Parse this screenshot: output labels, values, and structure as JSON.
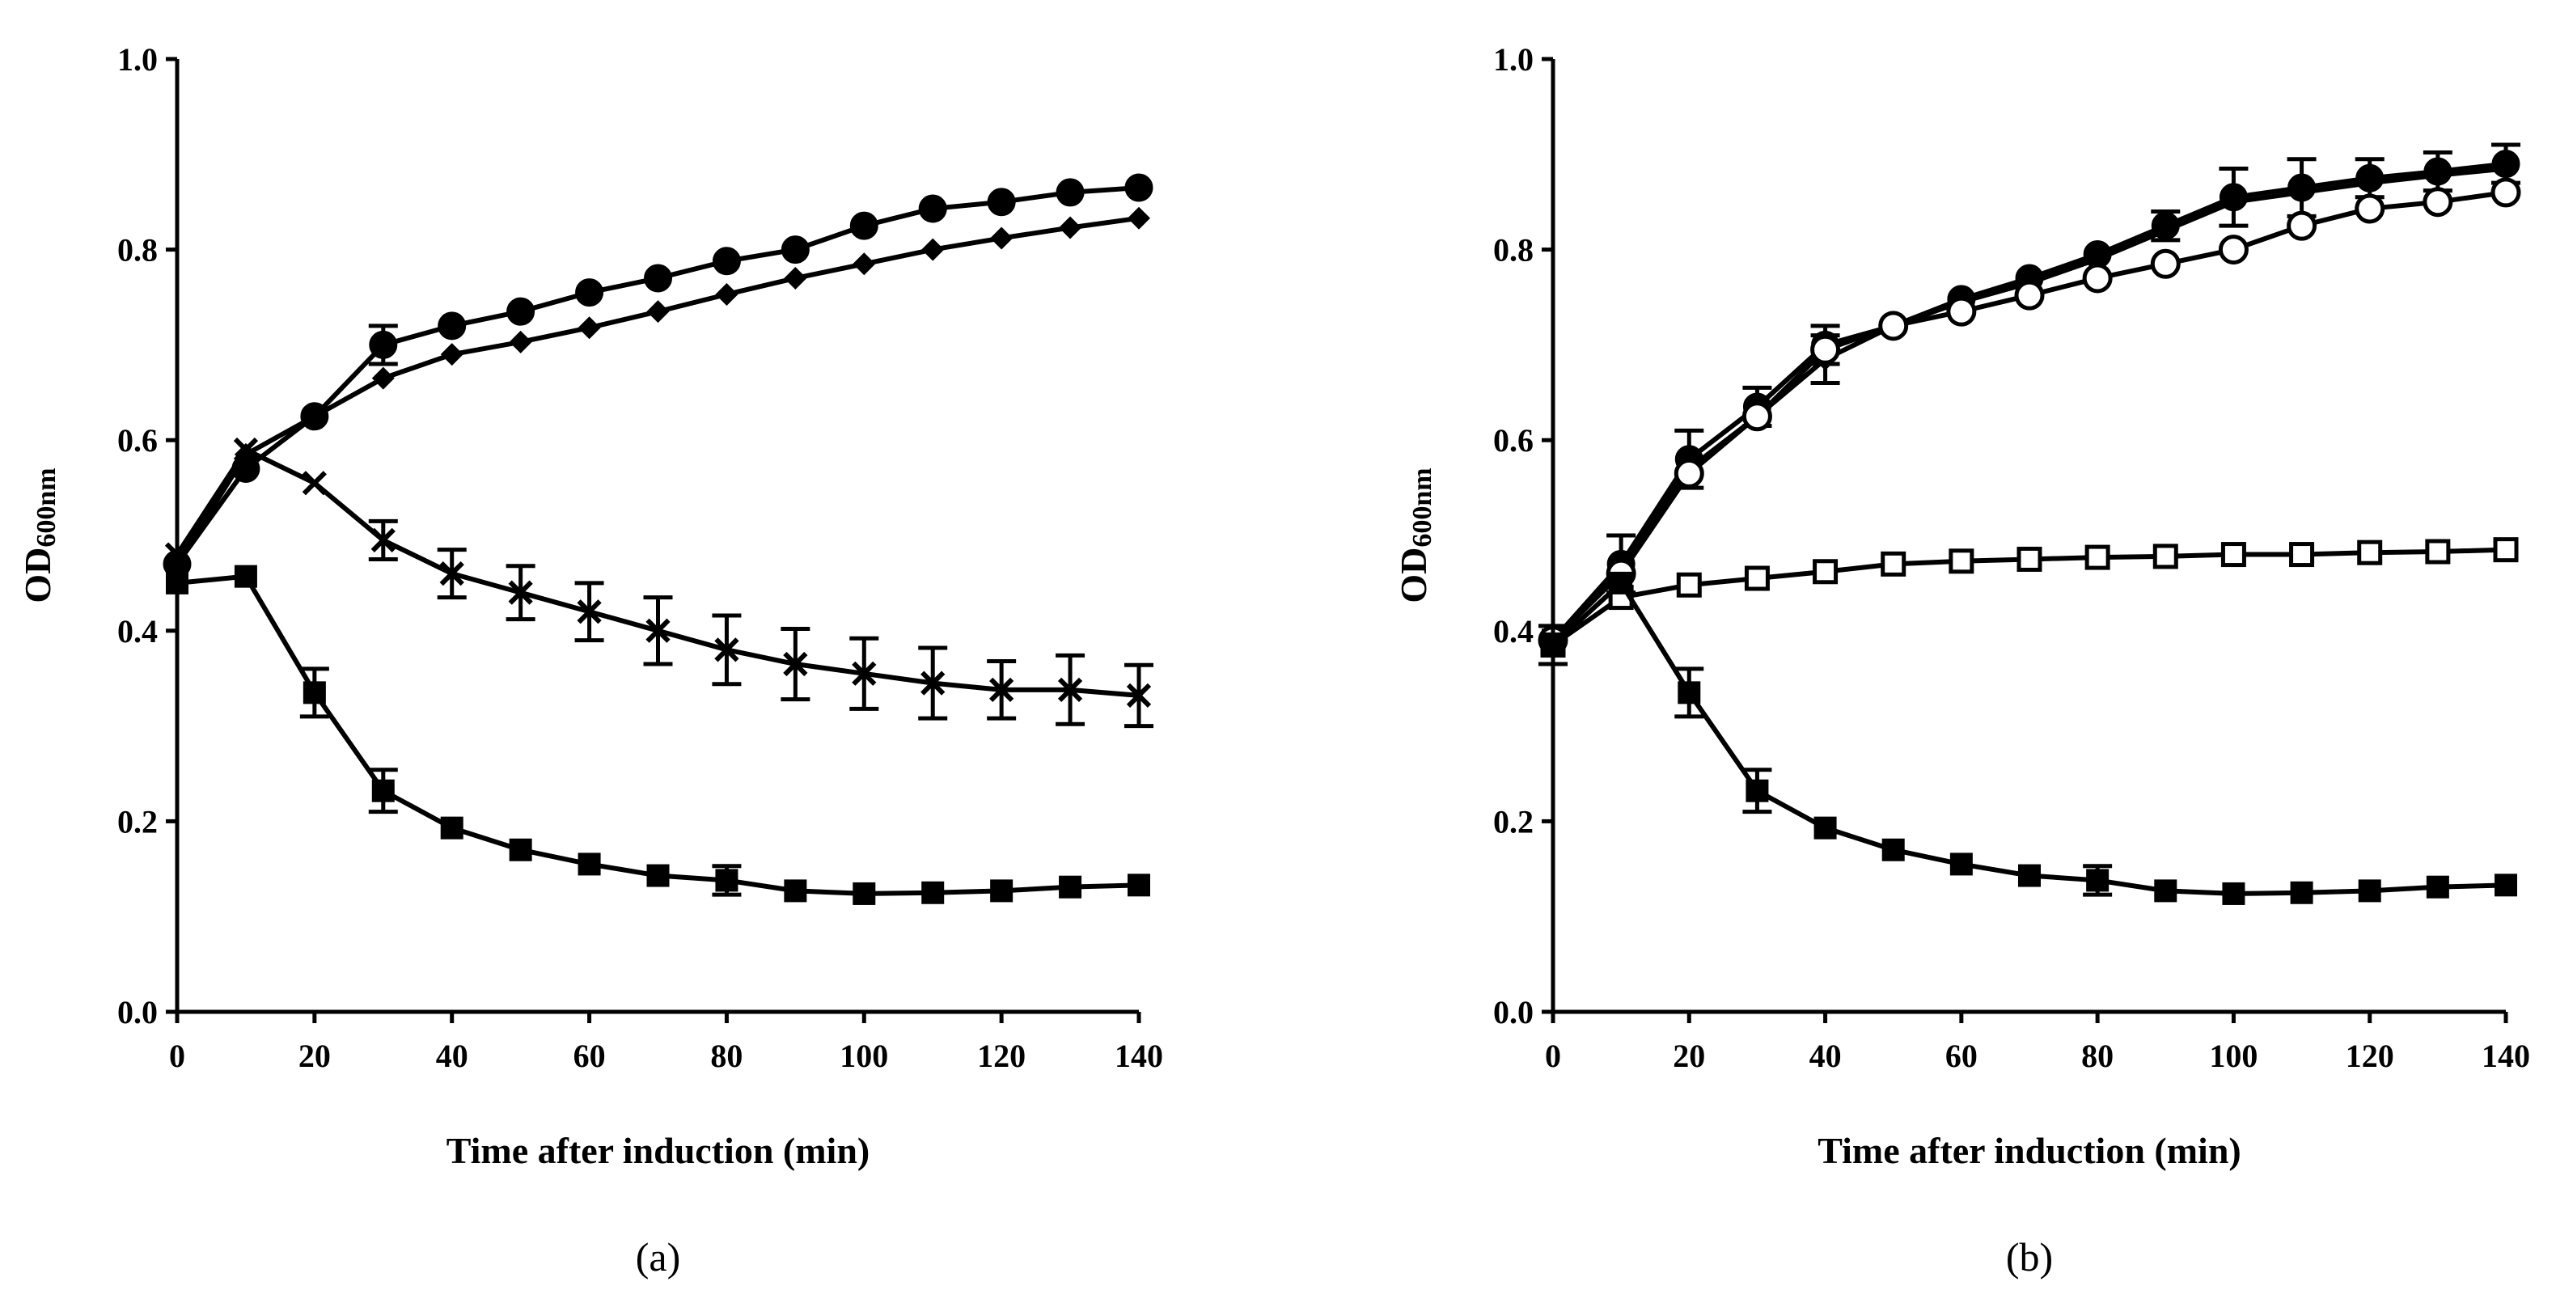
{
  "chart_data": [
    {
      "type": "line",
      "panel_label": "(a)",
      "xlabel": "Time after induction (min)",
      "ylabel_main": "OD",
      "ylabel_sub": "600nm",
      "xlim": [
        0,
        140
      ],
      "ylim": [
        0,
        1.0
      ],
      "xticks": [
        0,
        20,
        40,
        60,
        80,
        100,
        120,
        140
      ],
      "yticks": [
        "0.0",
        "0.2",
        "0.4",
        "0.6",
        "0.8",
        "1.0"
      ],
      "x": [
        0,
        10,
        20,
        30,
        40,
        50,
        60,
        70,
        80,
        90,
        100,
        110,
        120,
        130,
        140
      ],
      "series": [
        {
          "name": "filled-circle",
          "marker": "circle-filled",
          "values": [
            0.47,
            0.57,
            0.625,
            0.7,
            0.72,
            0.735,
            0.755,
            0.77,
            0.788,
            0.8,
            0.825,
            0.843,
            0.85,
            0.86,
            0.865
          ],
          "errors": [
            0.01,
            0.01,
            0.01,
            0.02,
            0.01,
            0.01,
            0.01,
            0.01,
            0.01,
            0.01,
            0.01,
            0.01,
            0.01,
            0.01,
            0.01
          ]
        },
        {
          "name": "filled-diamond",
          "marker": "diamond-filled",
          "values": [
            0.47,
            0.585,
            0.625,
            0.665,
            0.69,
            0.703,
            0.718,
            0.735,
            0.753,
            0.77,
            0.785,
            0.8,
            0.812,
            0.823,
            0.833
          ],
          "errors": [
            0,
            0,
            0,
            0,
            0,
            0,
            0,
            0,
            0,
            0,
            0,
            0,
            0,
            0,
            0
          ]
        },
        {
          "name": "cross",
          "marker": "x",
          "values": [
            0.48,
            0.59,
            0.555,
            0.495,
            0.46,
            0.44,
            0.42,
            0.4,
            0.38,
            0.365,
            0.355,
            0.345,
            0.338,
            0.338,
            0.332
          ],
          "errors": [
            0.01,
            0.01,
            0.01,
            0.02,
            0.025,
            0.028,
            0.03,
            0.035,
            0.036,
            0.037,
            0.037,
            0.037,
            0.03,
            0.036,
            0.032
          ]
        },
        {
          "name": "filled-square",
          "marker": "square-filled",
          "values": [
            0.45,
            0.457,
            0.335,
            0.232,
            0.193,
            0.17,
            0.155,
            0.143,
            0.138,
            0.127,
            0.124,
            0.125,
            0.127,
            0.131,
            0.133
          ],
          "errors": [
            0.01,
            0.01,
            0.025,
            0.022,
            0.008,
            0.008,
            0.008,
            0.01,
            0.015,
            0.01,
            0.01,
            0.01,
            0.01,
            0.01,
            0.01
          ]
        }
      ]
    },
    {
      "type": "line",
      "panel_label": "(b)",
      "xlabel": "Time after induction (min)",
      "ylabel_main": "OD",
      "ylabel_sub": "600nm",
      "xlim": [
        0,
        140
      ],
      "ylim": [
        0,
        1.0
      ],
      "xticks": [
        0,
        20,
        40,
        60,
        80,
        100,
        120,
        140
      ],
      "yticks": [
        "0.0",
        "0.2",
        "0.4",
        "0.6",
        "0.8",
        "1.0"
      ],
      "x": [
        0,
        10,
        20,
        30,
        40,
        50,
        60,
        70,
        80,
        90,
        100,
        110,
        120,
        130,
        140
      ],
      "series": [
        {
          "name": "filled-circle",
          "marker": "circle-filled",
          "values": [
            0.39,
            0.47,
            0.58,
            0.635,
            0.7,
            0.72,
            0.748,
            0.77,
            0.795,
            0.825,
            0.855,
            0.865,
            0.875,
            0.882,
            0.89
          ],
          "errors": [
            0.01,
            0.03,
            0.03,
            0.02,
            0.02,
            0.01,
            0.01,
            0.01,
            0.01,
            0.015,
            0.03,
            0.03,
            0.02,
            0.02,
            0.02
          ]
        },
        {
          "name": "filled-diamond",
          "marker": "diamond-filled",
          "values": [
            0.39,
            0.465,
            0.57,
            0.625,
            0.685,
            0.72,
            0.745,
            0.765,
            0.79,
            0.82,
            0.85,
            0.86,
            0.87,
            0.878,
            0.885
          ],
          "errors": [
            0,
            0,
            0,
            0,
            0.025,
            0,
            0,
            0,
            0,
            0,
            0,
            0,
            0,
            0,
            0
          ]
        },
        {
          "name": "open-circle",
          "marker": "circle-open",
          "values": [
            0.39,
            0.46,
            0.565,
            0.625,
            0.695,
            0.72,
            0.735,
            0.752,
            0.77,
            0.785,
            0.8,
            0.825,
            0.843,
            0.85,
            0.86
          ],
          "errors": [
            0.01,
            0.01,
            0.01,
            0.01,
            0.01,
            0.01,
            0.01,
            0.01,
            0.01,
            0.01,
            0.01,
            0.01,
            0.01,
            0.01,
            0.01
          ]
        },
        {
          "name": "open-square",
          "marker": "square-open",
          "values": [
            0.385,
            0.435,
            0.448,
            0.455,
            0.462,
            0.47,
            0.473,
            0.475,
            0.477,
            0.478,
            0.48,
            0.48,
            0.482,
            0.483,
            0.485
          ],
          "errors": [
            0.01,
            0.01,
            0.01,
            0.01,
            0.01,
            0.01,
            0.01,
            0.01,
            0.01,
            0.01,
            0.01,
            0.01,
            0.01,
            0.01,
            0.01
          ]
        },
        {
          "name": "filled-square",
          "marker": "square-filled",
          "values": [
            0.385,
            0.45,
            0.335,
            0.232,
            0.193,
            0.17,
            0.155,
            0.143,
            0.138,
            0.127,
            0.124,
            0.125,
            0.127,
            0.131,
            0.133
          ],
          "errors": [
            0.02,
            0.01,
            0.025,
            0.022,
            0.008,
            0.008,
            0.008,
            0.01,
            0.015,
            0.01,
            0.01,
            0.01,
            0.01,
            0.01,
            0.01
          ]
        }
      ]
    }
  ]
}
